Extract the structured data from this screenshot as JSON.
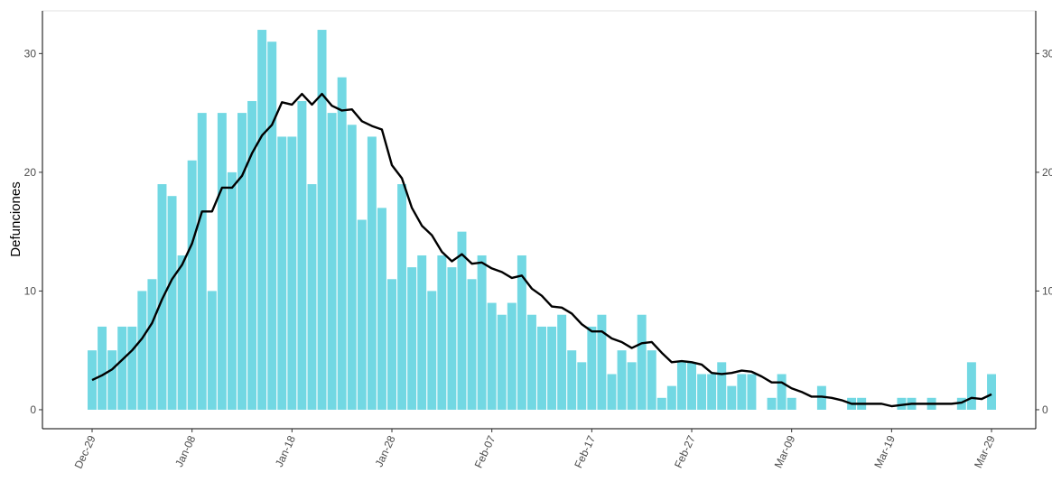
{
  "chart_data": {
    "type": "bar",
    "ylabel": "Defunciones",
    "categories": [
      "Dec-29",
      null,
      null,
      null,
      null,
      null,
      null,
      null,
      null,
      null,
      "Jan-08",
      null,
      null,
      null,
      null,
      null,
      null,
      null,
      null,
      null,
      "Jan-18",
      null,
      null,
      null,
      null,
      null,
      null,
      null,
      null,
      null,
      "Jan-28",
      null,
      null,
      null,
      null,
      null,
      null,
      null,
      null,
      null,
      "Feb-07",
      null,
      null,
      null,
      null,
      null,
      null,
      null,
      null,
      null,
      "Feb-17",
      null,
      null,
      null,
      null,
      null,
      null,
      null,
      null,
      null,
      "Feb-27",
      null,
      null,
      null,
      null,
      null,
      null,
      null,
      null,
      null,
      "Mar-09",
      null,
      null,
      null,
      null,
      null,
      null,
      null,
      null,
      null,
      "Mar-19",
      null,
      null,
      null,
      null,
      null,
      null,
      null,
      null,
      null,
      "Mar-29"
    ],
    "series": [
      {
        "type": "bar",
        "color": "#72d8e3",
        "values": [
          5,
          7,
          5,
          7,
          7,
          10,
          11,
          19,
          18,
          13,
          21,
          25,
          10,
          25,
          20,
          25,
          26,
          32,
          31,
          23,
          23,
          26,
          19,
          32,
          25,
          28,
          24,
          16,
          23,
          17,
          11,
          19,
          12,
          13,
          10,
          13,
          12,
          15,
          11,
          13,
          9,
          8,
          9,
          13,
          8,
          7,
          7,
          8,
          5,
          4,
          7,
          8,
          3,
          5,
          4,
          8,
          5,
          1,
          2,
          4,
          4,
          3,
          3,
          4,
          2,
          3,
          3,
          0,
          1,
          3,
          1,
          0,
          0,
          2,
          0,
          0,
          1,
          1,
          0,
          0,
          0,
          1,
          1,
          0,
          1,
          0,
          0,
          1,
          4,
          0,
          3
        ]
      },
      {
        "type": "line",
        "color": "#000000",
        "values": [
          2.5,
          2.9,
          3.4,
          4.2,
          5,
          6,
          7.3,
          9.3,
          11,
          12.2,
          14,
          16.7,
          16.7,
          18.7,
          18.7,
          19.7,
          21.6,
          23.1,
          24,
          25.9,
          25.7,
          26.6,
          25.7,
          26.6,
          25.6,
          25.2,
          25.3,
          24.3,
          23.9,
          23.6,
          20.6,
          19.5,
          17,
          15.5,
          14.7,
          13.3,
          12.5,
          13.1,
          12.3,
          12.4,
          11.9,
          11.6,
          11.1,
          11.3,
          10.2,
          9.6,
          8.7,
          8.6,
          8.1,
          7.2,
          6.6,
          6.6,
          6,
          5.7,
          5.2,
          5.6,
          5.7,
          4.8,
          4,
          4.1,
          4,
          3.8,
          3.1,
          3,
          3.1,
          3.3,
          3.2,
          2.8,
          2.3,
          2.3,
          1.8,
          1.5,
          1.1,
          1.1,
          1,
          0.8,
          0.5,
          0.5,
          0.5,
          0.5,
          0.3,
          0.4,
          0.5,
          0.5,
          0.5,
          0.5,
          0.5,
          0.6,
          1,
          0.9,
          1.3
        ]
      }
    ],
    "ylim": [
      -1.6,
      33.6
    ],
    "yticks": [
      0,
      10,
      20,
      30
    ],
    "right_axis": true
  }
}
